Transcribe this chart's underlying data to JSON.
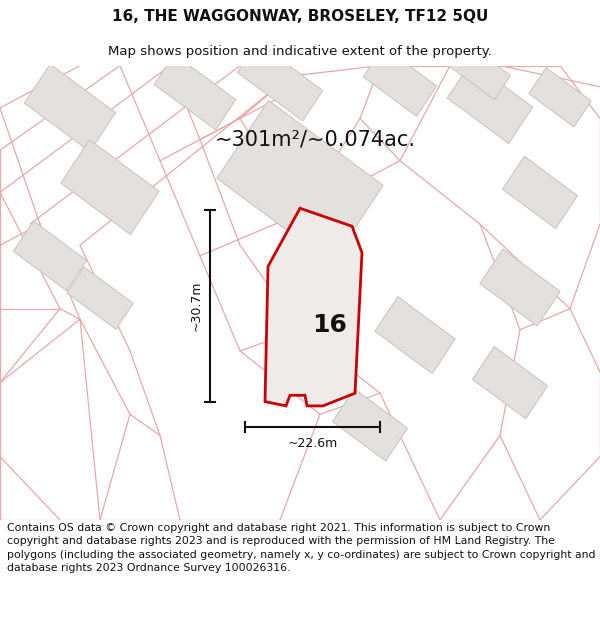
{
  "title_line1": "16, THE WAGGONWAY, BROSELEY, TF12 5QU",
  "title_line2": "Map shows position and indicative extent of the property.",
  "area_label": "~301m²/~0.074ac.",
  "property_number": "16",
  "dim_vertical": "~30.7m",
  "dim_horizontal": "~22.6m",
  "footer_text": "Contains OS data © Crown copyright and database right 2021. This information is subject to Crown copyright and database rights 2023 and is reproduced with the permission of HM Land Registry. The polygons (including the associated geometry, namely x, y co-ordinates) are subject to Crown copyright and database rights 2023 Ordnance Survey 100026316.",
  "bg_color": "#ffffff",
  "map_bg": "#f8f6f4",
  "building_fill": "#e4e0de",
  "building_stroke": "#c8c2be",
  "pink_line": "#e8a8a8",
  "property_fill": "#eeebe8",
  "property_outline": "#cc0000",
  "dim_color": "#111111",
  "text_color": "#111111",
  "title_fontsize": 11,
  "subtitle_fontsize": 9.5,
  "footer_fontsize": 7.8,
  "area_fontsize": 15,
  "num_fontsize": 18,
  "dim_fontsize": 9
}
